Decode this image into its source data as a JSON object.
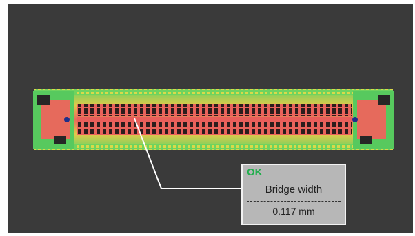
{
  "inspection": {
    "status": "OK",
    "metric_label": "Bridge width",
    "measurement": "0.117 mm"
  },
  "colors": {
    "background": "#3a3a3a",
    "status_ok": "#1fae4b",
    "solder_green": "#4fcf6a",
    "solder_yellow": "#e7d24a",
    "solder_red": "#e2675c"
  }
}
